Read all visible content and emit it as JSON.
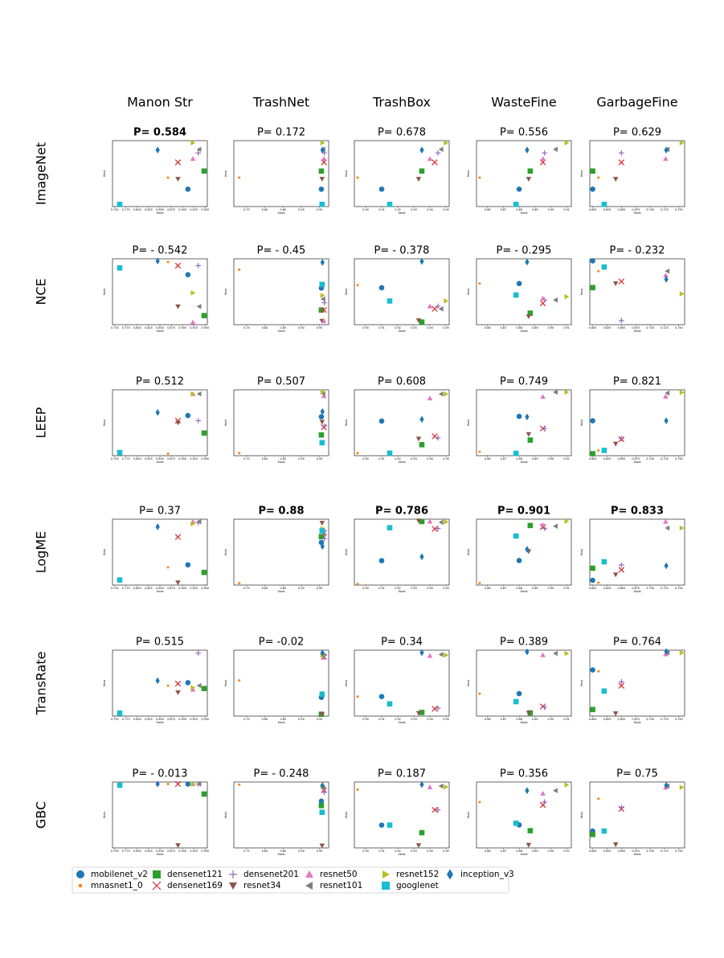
{
  "figure": {
    "column_titles": [
      "Manon Str",
      "TrashNet",
      "TrashBox",
      "WasteFine",
      "GarbageFine"
    ],
    "row_titles": [
      "ImageNet",
      "NCE",
      "LEEP",
      "LogME",
      "TransRate",
      "GBC"
    ],
    "axis_labels": {
      "x": "Xaxis",
      "y": "Yaxis"
    },
    "xticks": [
      [
        {
          "value": 0.75,
          "label": "0.750"
        },
        0.775,
        {
          "value": 0.8,
          "label": "0.800"
        },
        0.825,
        {
          "value": 0.85,
          "label": "0.850"
        },
        0.875,
        {
          "value": 0.9,
          "label": "0.900"
        },
        0.925,
        {
          "value": 0.95,
          "label": "0.950"
        }
      ],
      [
        0.75,
        {
          "value": 0.8,
          "label": "0.80"
        },
        0.85,
        {
          "value": 0.9,
          "label": "0.90"
        },
        0.95
      ],
      [
        {
          "value": 0.9,
          "label": "0.90"
        },
        0.91,
        0.92,
        0.93,
        0.94,
        0.95
      ],
      [
        0.86,
        0.87,
        0.88,
        0.89,
        {
          "value": 0.9,
          "label": "0.90"
        },
        0.91
      ],
      [
        {
          "value": 0.6,
          "label": "0.600"
        },
        0.625,
        {
          "value": 0.65,
          "label": "0.650"
        },
        0.675,
        {
          "value": 0.7,
          "label": "0.700"
        },
        0.725,
        {
          "value": 0.75,
          "label": "0.750"
        }
      ]
    ],
    "legend": [
      {
        "name": "mobilenet_v2",
        "color": "#1f77b4",
        "marker": "circle"
      },
      {
        "name": "mnasnet1_0",
        "color": "#ff7f0e",
        "marker": "dot"
      },
      {
        "name": "densenet121",
        "color": "#2ca02c",
        "marker": "square"
      },
      {
        "name": "densenet169",
        "color": "#d62728",
        "marker": "x"
      },
      {
        "name": "densenet201",
        "color": "#9467bd",
        "marker": "plus"
      },
      {
        "name": "resnet34",
        "color": "#8c564b",
        "marker": "tri-down"
      },
      {
        "name": "resnet50",
        "color": "#e377c2",
        "marker": "tri-up"
      },
      {
        "name": "resnet101",
        "color": "#7f7f7f",
        "marker": "tri-left"
      },
      {
        "name": "resnet152",
        "color": "#bcbd22",
        "marker": "tri-right"
      },
      {
        "name": "googlenet",
        "color": "#17becf",
        "marker": "square"
      },
      {
        "name": "inception_v3",
        "color": "#1f77b4",
        "marker": "diamond"
      }
    ]
  },
  "chart_data": [
    {
      "type": "scatter",
      "title": "P= 0.584",
      "title_bold": true,
      "x": [
        0.912,
        0.868,
        0.948,
        0.89,
        0.935,
        0.89,
        0.923,
        0.937,
        0.923,
        0.761,
        0.845
      ],
      "values": [
        71.9,
        73.5,
        74.4,
        75.6,
        76.9,
        73.3,
        76.1,
        77.4,
        78.3,
        69.8,
        77.3
      ],
      "xlim": [
        0.745,
        0.955
      ],
      "ylim": [
        69.5,
        78.6
      ]
    },
    {
      "type": "scatter",
      "title": "P= 0.172",
      "x": [
        0.955,
        0.73,
        0.955,
        0.962,
        0.963,
        0.957,
        0.962,
        0.96,
        0.958,
        0.957,
        0.958
      ],
      "values": [
        71.9,
        73.5,
        74.4,
        75.6,
        76.9,
        73.3,
        76.1,
        77.4,
        78.3,
        69.8,
        77.3
      ],
      "xlim": [
        0.715,
        0.975
      ],
      "ylim": [
        69.5,
        78.6
      ]
    },
    {
      "type": "scatter",
      "title": "P= 0.678",
      "x": [
        0.91,
        0.895,
        0.935,
        0.943,
        0.945,
        0.933,
        0.94,
        0.947,
        0.95,
        0.915,
        0.935
      ],
      "values": [
        71.9,
        73.5,
        74.4,
        75.6,
        76.9,
        73.3,
        76.1,
        77.4,
        78.3,
        69.8,
        77.3
      ],
      "xlim": [
        0.893,
        0.952
      ],
      "ylim": [
        69.5,
        78.6
      ]
    },
    {
      "type": "scatter",
      "title": "P= 0.556",
      "x": [
        0.88,
        0.855,
        0.887,
        0.895,
        0.896,
        0.886,
        0.895,
        0.903,
        0.91,
        0.878,
        0.885
      ],
      "values": [
        71.9,
        73.5,
        74.4,
        75.6,
        76.9,
        73.3,
        76.1,
        77.4,
        78.3,
        69.8,
        77.3
      ],
      "xlim": [
        0.853,
        0.913
      ],
      "ylim": [
        69.5,
        78.6
      ]
    },
    {
      "type": "scatter",
      "title": "P= 0.629",
      "x": [
        0.6,
        0.61,
        0.6,
        0.65,
        0.65,
        0.64,
        0.727,
        0.73,
        0.755,
        0.62,
        0.728
      ],
      "values": [
        71.9,
        73.5,
        74.4,
        75.6,
        76.9,
        73.3,
        76.1,
        77.4,
        78.3,
        69.8,
        77.3
      ],
      "xlim": [
        0.595,
        0.76
      ],
      "ylim": [
        69.5,
        78.6
      ]
    },
    {
      "type": "scatter",
      "title": "P= - 0.542",
      "x": [
        0.912,
        0.868,
        0.948,
        0.89,
        0.935,
        0.89,
        0.923,
        0.937,
        0.923,
        0.761,
        0.845
      ],
      "values": [
        -0.34,
        -0.312,
        -0.43,
        -0.32,
        -0.32,
        -0.41,
        -0.445,
        -0.41,
        -0.38,
        -0.325,
        -0.31
      ],
      "xlim": [
        0.745,
        0.955
      ],
      "ylim": [
        -0.45,
        -0.305
      ]
    },
    {
      "type": "scatter",
      "title": "P= - 0.45",
      "x": [
        0.955,
        0.73,
        0.955,
        0.962,
        0.963,
        0.957,
        0.962,
        0.96,
        0.958,
        0.957,
        0.958
      ],
      "values": [
        -0.46,
        -0.41,
        -0.52,
        -0.52,
        -0.5,
        -0.55,
        -0.55,
        -0.49,
        -0.48,
        -0.45,
        -0.39
      ],
      "xlim": [
        0.715,
        0.975
      ],
      "ylim": [
        -0.56,
        -0.38
      ]
    },
    {
      "type": "scatter",
      "title": "P= - 0.378",
      "x": [
        0.91,
        0.895,
        0.935,
        0.943,
        0.945,
        0.933,
        0.94,
        0.947,
        0.95,
        0.915,
        0.935
      ],
      "values": [
        -0.335,
        -0.33,
        -0.4,
        -0.375,
        -0.37,
        -0.397,
        -0.37,
        -0.375,
        -0.36,
        -0.36,
        -0.285
      ],
      "xlim": [
        0.893,
        0.952
      ],
      "ylim": [
        -0.405,
        -0.28
      ]
    },
    {
      "type": "scatter",
      "title": "P= - 0.295",
      "x": [
        0.88,
        0.855,
        0.887,
        0.895,
        0.896,
        0.886,
        0.895,
        0.903,
        0.91,
        0.878,
        0.885
      ],
      "values": [
        -0.52,
        -0.52,
        -0.538,
        -0.532,
        -0.53,
        -0.54,
        -0.529,
        -0.53,
        -0.528,
        -0.527,
        -0.507
      ],
      "xlim": [
        0.853,
        0.913
      ],
      "ylim": [
        -0.545,
        -0.505
      ]
    },
    {
      "type": "scatter",
      "title": "P= - 0.232",
      "x": [
        0.6,
        0.61,
        0.6,
        0.65,
        0.65,
        0.64,
        0.727,
        0.73,
        0.755,
        0.62,
        0.728
      ],
      "values": [
        -0.445,
        -0.47,
        -0.51,
        -0.495,
        -0.59,
        -0.5,
        -0.48,
        -0.47,
        -0.525,
        -0.46,
        -0.49
      ],
      "xlim": [
        0.595,
        0.76
      ],
      "ylim": [
        -0.6,
        -0.44
      ]
    },
    {
      "type": "scatter",
      "title": "P= 0.512",
      "x": [
        0.912,
        0.868,
        0.948,
        0.89,
        0.935,
        0.89,
        0.923,
        0.937,
        0.923,
        0.761,
        0.845
      ],
      "values": [
        6.17,
        5.8,
        6.0,
        6.12,
        6.12,
        6.1,
        6.38,
        6.38,
        6.38,
        5.81,
        6.2
      ],
      "xlim": [
        0.745,
        0.955
      ],
      "ylim": [
        5.78,
        6.42
      ]
    },
    {
      "type": "scatter",
      "title": "P= 0.507",
      "x": [
        0.955,
        0.73,
        0.955,
        0.962,
        0.963,
        0.957,
        0.962,
        0.96,
        0.958,
        0.957,
        0.958
      ],
      "values": [
        5.8,
        5.1,
        5.45,
        5.6,
        5.62,
        5.7,
        6.2,
        6.25,
        6.28,
        5.3,
        5.9
      ],
      "xlim": [
        0.715,
        0.975
      ],
      "ylim": [
        5.05,
        6.32
      ]
    },
    {
      "type": "scatter",
      "title": "P= 0.608",
      "x": [
        0.91,
        0.895,
        0.935,
        0.943,
        0.945,
        0.933,
        0.94,
        0.947,
        0.95,
        0.915,
        0.935
      ],
      "values": [
        6.18,
        5.8,
        5.9,
        6.0,
        5.98,
        5.97,
        6.45,
        6.5,
        6.5,
        5.8,
        6.2
      ],
      "xlim": [
        0.893,
        0.952
      ],
      "ylim": [
        5.77,
        6.55
      ]
    },
    {
      "type": "scatter",
      "title": "P= 0.749",
      "x": [
        0.88,
        0.855,
        0.887,
        0.895,
        0.896,
        0.886,
        0.895,
        0.903,
        0.91,
        0.878,
        0.885
      ],
      "values": [
        5.86,
        5.25,
        5.45,
        5.65,
        5.65,
        5.55,
        6.2,
        6.28,
        6.28,
        5.22,
        5.85
      ],
      "xlim": [
        0.853,
        0.913
      ],
      "ylim": [
        5.18,
        6.32
      ]
    },
    {
      "type": "scatter",
      "title": "P= 0.821",
      "x": [
        0.6,
        0.61,
        0.6,
        0.65,
        0.65,
        0.64,
        0.727,
        0.73,
        0.755,
        0.62,
        0.728
      ],
      "values": [
        4.35,
        3.9,
        3.85,
        4.07,
        4.08,
        4.0,
        4.72,
        4.77,
        4.78,
        3.9,
        4.35
      ],
      "xlim": [
        0.595,
        0.76
      ],
      "ylim": [
        3.82,
        4.82
      ]
    },
    {
      "type": "scatter",
      "title": "P= 0.37",
      "x": [
        0.912,
        0.868,
        0.948,
        0.89,
        0.935,
        0.89,
        0.923,
        0.937,
        0.923,
        0.761,
        0.845
      ],
      "values": [
        8.5,
        8,
        7,
        14,
        16.8,
        5,
        17,
        17,
        16.6,
        5.5,
        16
      ],
      "xlim": [
        0.745,
        0.955
      ],
      "ylim": [
        4.5,
        17.5
      ]
    },
    {
      "type": "scatter",
      "title": "P= 0.88",
      "title_bold": true,
      "x": [
        0.955,
        0.73,
        0.955,
        0.962,
        0.963,
        0.957,
        0.962,
        0.96,
        0.958,
        0.957,
        0.958
      ],
      "values": [
        -0.3255,
        -0.336,
        -0.324,
        -0.323,
        -0.3245,
        -0.3205,
        -0.3222,
        -0.3235,
        -0.322,
        -0.3225,
        -0.3265
      ],
      "xlim": [
        0.715,
        0.975
      ],
      "ylim": [
        -0.3365,
        -0.3195
      ]
    },
    {
      "type": "scatter",
      "title": "P= 0.786",
      "title_bold": true,
      "x": [
        0.91,
        0.895,
        0.935,
        0.943,
        0.945,
        0.933,
        0.94,
        0.947,
        0.95,
        0.915,
        0.935
      ],
      "values": [
        -0.2395,
        -0.2455,
        -0.2294,
        -0.2313,
        -0.2312,
        -0.2292,
        -0.2294,
        -0.2296,
        -0.2295,
        -0.231,
        -0.2385
      ],
      "xlim": [
        0.893,
        0.952
      ],
      "ylim": [
        -0.2458,
        -0.2288
      ]
    },
    {
      "type": "scatter",
      "title": "P= 0.901",
      "title_bold": true,
      "x": [
        0.88,
        0.855,
        0.887,
        0.895,
        0.896,
        0.886,
        0.895,
        0.903,
        0.91,
        0.878,
        0.885
      ],
      "values": [
        -0.5738,
        -0.577,
        -0.5688,
        -0.569,
        -0.5692,
        -0.5725,
        -0.5687,
        -0.5689,
        -0.5682,
        -0.5703,
        -0.5722
      ],
      "xlim": [
        0.853,
        0.913
      ],
      "ylim": [
        -0.5773,
        -0.5679
      ]
    },
    {
      "type": "scatter",
      "title": "P= 0.833",
      "title_bold": true,
      "x": [
        0.6,
        0.61,
        0.6,
        0.65,
        0.65,
        0.64,
        0.727,
        0.73,
        0.755,
        0.62,
        0.728
      ],
      "values": [
        0.825,
        0.822,
        0.84,
        0.838,
        0.844,
        0.832,
        0.898,
        0.89,
        0.89,
        0.848,
        0.843
      ],
      "xlim": [
        0.595,
        0.76
      ],
      "ylim": [
        0.819,
        0.901
      ]
    },
    {
      "type": "scatter",
      "title": "P= 0.515",
      "x": [
        0.912,
        0.868,
        0.948,
        0.89,
        0.935,
        0.89,
        0.923,
        0.937,
        0.923,
        0.761,
        0.845
      ],
      "values": [
        548,
        545,
        542,
        547,
        578,
        538,
        541,
        545,
        543,
        517,
        550
      ],
      "xlim": [
        0.745,
        0.955
      ],
      "ylim": [
        514,
        581
      ]
    },
    {
      "type": "scatter",
      "title": "P= -0.02",
      "x": [
        0.955,
        0.73,
        0.955,
        0.962,
        0.963,
        0.957,
        0.962,
        0.96,
        0.958,
        0.957,
        0.958
      ],
      "values": [
        530,
        900,
        160,
        1420,
        1450,
        160,
        1400,
        1430,
        1450,
        600,
        1500
      ],
      "xlim": [
        0.715,
        0.975
      ],
      "ylim": [
        120,
        1560
      ]
    },
    {
      "type": "scatter",
      "title": "P= 0.34",
      "x": [
        0.91,
        0.895,
        0.935,
        0.943,
        0.945,
        0.933,
        0.94,
        0.947,
        0.95,
        0.915,
        0.935
      ],
      "values": [
        160,
        160,
        30,
        60,
        65,
        25,
        495,
        505,
        500,
        100,
        520
      ],
      "xlim": [
        0.893,
        0.952
      ],
      "ylim": [
        0,
        540
      ]
    },
    {
      "type": "scatter",
      "title": "P= 0.389",
      "x": [
        0.88,
        0.855,
        0.887,
        0.895,
        0.896,
        0.886,
        0.895,
        0.903,
        0.91,
        0.878,
        0.885
      ],
      "values": [
        80,
        80,
        20,
        40,
        38,
        20,
        200,
        205,
        205,
        55,
        210
      ],
      "xlim": [
        0.853,
        0.913
      ],
      "ylim": [
        10,
        215
      ]
    },
    {
      "type": "scatter",
      "title": "P= 0.764",
      "x": [
        0.6,
        0.61,
        0.6,
        0.65,
        0.65,
        0.64,
        0.727,
        0.73,
        0.755,
        0.62,
        0.728
      ],
      "values": [
        2200,
        2150,
        700,
        1600,
        1750,
        550,
        2800,
        2850,
        2850,
        1400,
        2900
      ],
      "xlim": [
        0.595,
        0.76
      ],
      "ylim": [
        450,
        2950
      ]
    },
    {
      "type": "scatter",
      "title": "P= - 0.013",
      "x": [
        0.912,
        0.868,
        0.948,
        0.89,
        0.935,
        0.89,
        0.923,
        0.937,
        0.923,
        0.761,
        0.845
      ],
      "values": [
        0,
        0,
        -0.004,
        0,
        0,
        -0.0245,
        0,
        0,
        0,
        -0.0005,
        0
      ],
      "xlim": [
        0.745,
        0.955
      ],
      "ylim": [
        -0.0255,
        0.0008
      ]
    },
    {
      "type": "scatter",
      "title": "P= - 0.248",
      "x": [
        0.955,
        0.73,
        0.955,
        0.962,
        0.963,
        0.957,
        0.962,
        0.96,
        0.958,
        0.957,
        0.958
      ],
      "values": [
        -0.55,
        -0.18,
        -0.65,
        -0.3,
        -0.35,
        -1.55,
        -0.25,
        -0.25,
        -0.22,
        -0.8,
        -0.2
      ],
      "xlim": [
        0.715,
        0.975
      ],
      "ylim": [
        -1.6,
        -0.12
      ]
    },
    {
      "type": "scatter",
      "title": "P= 0.187",
      "x": [
        0.91,
        0.895,
        0.935,
        0.943,
        0.945,
        0.933,
        0.94,
        0.947,
        0.95,
        0.915,
        0.935
      ],
      "values": [
        -1.15,
        -0.45,
        -1.3,
        -0.85,
        -0.85,
        -1.55,
        -0.4,
        -0.38,
        -0.4,
        -1.15,
        -0.35
      ],
      "xlim": [
        0.893,
        0.952
      ],
      "ylim": [
        -1.6,
        -0.3
      ]
    },
    {
      "type": "scatter",
      "title": "P= 0.356",
      "x": [
        0.88,
        0.855,
        0.887,
        0.895,
        0.896,
        0.886,
        0.895,
        0.903,
        0.91,
        0.878,
        0.885
      ],
      "values": [
        -1.15,
        -0.75,
        -1.25,
        -0.8,
        -0.75,
        -1.5,
        -0.6,
        -0.55,
        -0.45,
        -1.12,
        -0.55
      ],
      "xlim": [
        0.853,
        0.913
      ],
      "ylim": [
        -1.55,
        -0.4
      ]
    },
    {
      "type": "scatter",
      "title": "P= 0.75",
      "x": [
        0.6,
        0.61,
        0.6,
        0.65,
        0.65,
        0.64,
        0.727,
        0.73,
        0.755,
        0.62,
        0.728
      ],
      "values": [
        -1.623,
        -1.575,
        -1.628,
        -1.59,
        -1.588,
        -1.643,
        -1.558,
        -1.556,
        -1.558,
        -1.623,
        -1.555
      ],
      "xlim": [
        0.595,
        0.76
      ],
      "ylim": [
        -1.648,
        -1.55
      ]
    }
  ]
}
